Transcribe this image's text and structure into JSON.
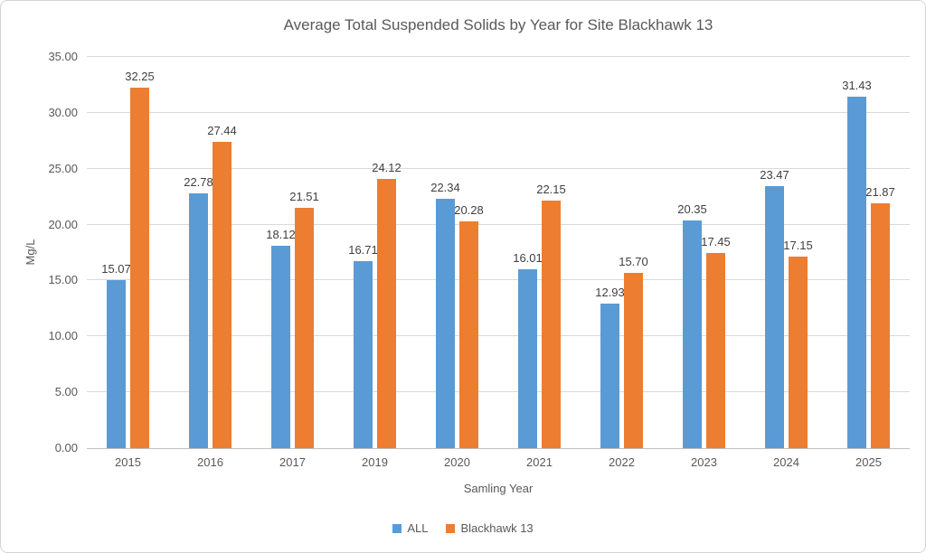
{
  "window": {
    "background_color": "#FFFFFF",
    "border_color": "#D3D3D3"
  },
  "styles": {
    "title_color": "#595959",
    "axis_text_color": "#595959",
    "data_label_color": "#404040",
    "gridline_color": "#D9D9D9",
    "axis_line_color": "#BFBFBF"
  },
  "chart_data": {
    "type": "bar",
    "title": "Average Total Suspended Solids by Year for Site Blackhawk 13",
    "xlabel": "Samling Year",
    "ylabel": "Mg/L",
    "ylim": [
      0,
      35
    ],
    "ytick_step": 5,
    "ytick_decimals": 2,
    "grid": true,
    "data_labels": true,
    "legend_position": "bottom",
    "categories": [
      "2015",
      "2016",
      "2017",
      "2019",
      "2020",
      "2021",
      "2022",
      "2023",
      "2024",
      "2025"
    ],
    "series": [
      {
        "name": "ALL",
        "color": "#5B9BD5",
        "values": [
          15.07,
          22.78,
          18.12,
          16.71,
          22.34,
          16.01,
          12.93,
          20.35,
          23.47,
          31.43
        ]
      },
      {
        "name": "Blackhawk 13",
        "color": "#ED7D31",
        "values": [
          32.25,
          27.44,
          21.51,
          24.12,
          20.28,
          22.15,
          15.7,
          17.45,
          17.15,
          21.87
        ]
      }
    ]
  }
}
